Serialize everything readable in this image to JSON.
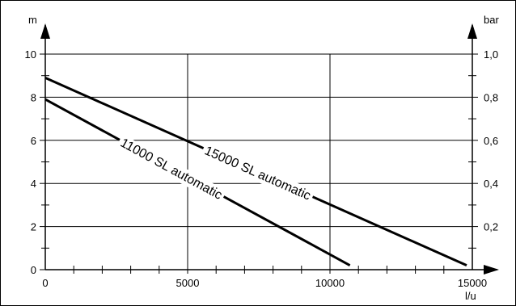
{
  "chart_data": {
    "type": "line",
    "xlabel": "l/u",
    "ylabel_left": "m",
    "ylabel_right": "bar",
    "xlim": [
      0,
      15000
    ],
    "ylim": [
      0,
      10
    ],
    "x_ticks": [
      "0",
      "5000",
      "10000",
      "15000"
    ],
    "y_ticks_left": [
      "0",
      "2",
      "4",
      "6",
      "8",
      "10"
    ],
    "y_ticks_right": [
      "0,2",
      "0,4",
      "0,6",
      "0,8",
      "1,0"
    ],
    "grid": true,
    "series": [
      {
        "name": "15000 SL automatic",
        "x": [
          0,
          14800
        ],
        "y": [
          8.9,
          0.2
        ]
      },
      {
        "name": "11000 SL automatic",
        "x": [
          0,
          10700
        ],
        "y": [
          7.9,
          0.2
        ]
      }
    ]
  }
}
